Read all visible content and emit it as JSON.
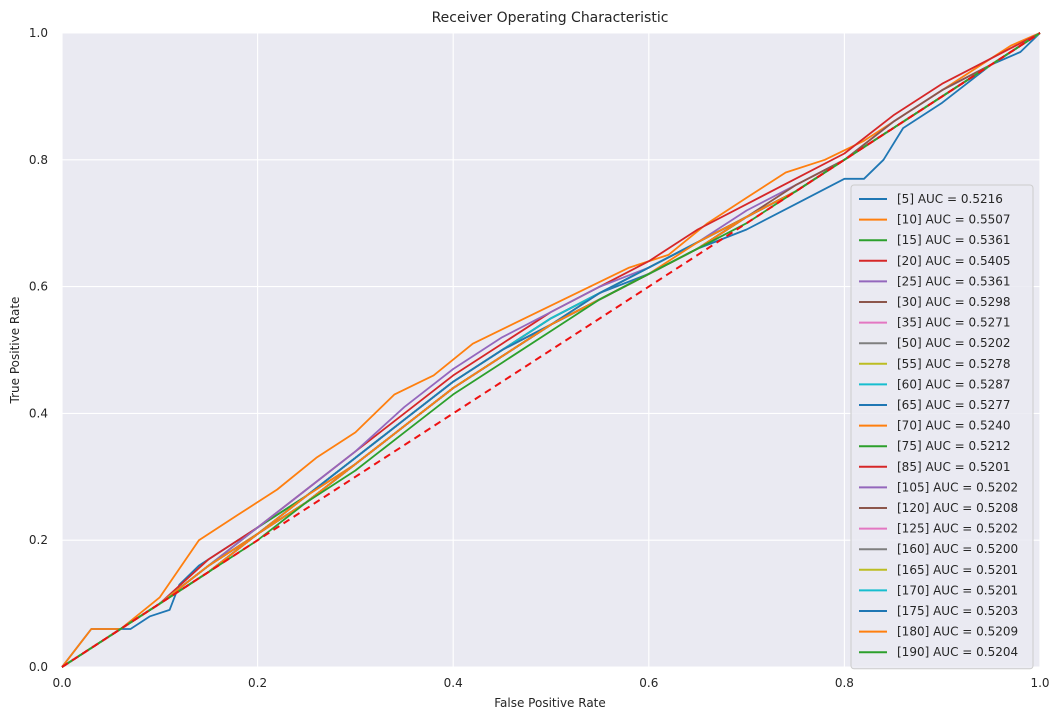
{
  "chart_data": {
    "type": "line",
    "title": "Receiver Operating Characteristic",
    "xlabel": "False Positive Rate",
    "ylabel": "True Positive Rate",
    "xlim": [
      0.0,
      1.0
    ],
    "ylim": [
      0.0,
      1.0
    ],
    "xticks": [
      "0.0",
      "0.2",
      "0.4",
      "0.6",
      "0.8",
      "1.0"
    ],
    "yticks": [
      "0.0",
      "0.2",
      "0.4",
      "0.6",
      "0.8",
      "1.0"
    ],
    "grid": true,
    "legend_position": "center-right",
    "background_color": "#eaeaf2",
    "baseline": {
      "x": [
        0,
        1
      ],
      "y": [
        0,
        1
      ],
      "color": "#ee1111",
      "style": "dashed"
    },
    "series": [
      {
        "name": "[5] AUC = 0.5216",
        "color": "#1f77b4",
        "x": [
          0,
          0.01,
          0.02,
          0.03,
          0.05,
          0.07,
          0.09,
          0.11,
          0.12,
          0.14,
          0.16,
          0.2,
          0.25,
          0.3,
          0.35,
          0.4,
          0.45,
          0.5,
          0.55,
          0.6,
          0.65,
          0.7,
          0.75,
          0.8,
          0.82,
          0.84,
          0.86,
          0.9,
          0.95,
          0.98,
          1
        ],
        "y": [
          0,
          0.02,
          0.04,
          0.06,
          0.06,
          0.06,
          0.08,
          0.09,
          0.13,
          0.16,
          0.18,
          0.22,
          0.27,
          0.33,
          0.39,
          0.45,
          0.5,
          0.55,
          0.59,
          0.62,
          0.66,
          0.69,
          0.73,
          0.77,
          0.77,
          0.8,
          0.85,
          0.89,
          0.95,
          0.97,
          1
        ]
      },
      {
        "name": "[10] AUC = 0.5507",
        "color": "#ff7f0e",
        "x": [
          0,
          0.03,
          0.06,
          0.1,
          0.14,
          0.18,
          0.22,
          0.26,
          0.3,
          0.34,
          0.38,
          0.42,
          0.46,
          0.5,
          0.54,
          0.58,
          0.62,
          0.66,
          0.7,
          0.74,
          0.78,
          0.82,
          0.86,
          0.9,
          0.94,
          0.97,
          1
        ],
        "y": [
          0,
          0.06,
          0.06,
          0.11,
          0.2,
          0.24,
          0.28,
          0.33,
          0.37,
          0.43,
          0.46,
          0.51,
          0.54,
          0.57,
          0.6,
          0.63,
          0.65,
          0.7,
          0.74,
          0.78,
          0.8,
          0.83,
          0.87,
          0.91,
          0.95,
          0.98,
          1
        ]
      },
      {
        "name": "[15] AUC = 0.5361",
        "color": "#2ca02c",
        "x": [
          0,
          0.05,
          0.1,
          0.15,
          0.2,
          0.25,
          0.3,
          0.35,
          0.4,
          0.45,
          0.5,
          0.55,
          0.6,
          0.65,
          0.7,
          0.75,
          0.8,
          0.85,
          0.9,
          0.95,
          1
        ],
        "y": [
          0,
          0.05,
          0.1,
          0.16,
          0.22,
          0.27,
          0.33,
          0.39,
          0.45,
          0.5,
          0.55,
          0.59,
          0.63,
          0.67,
          0.71,
          0.75,
          0.8,
          0.85,
          0.9,
          0.95,
          1
        ]
      },
      {
        "name": "[20] AUC = 0.5405",
        "color": "#d62728",
        "x": [
          0,
          0.05,
          0.1,
          0.15,
          0.2,
          0.25,
          0.3,
          0.35,
          0.4,
          0.45,
          0.5,
          0.55,
          0.6,
          0.65,
          0.7,
          0.75,
          0.8,
          0.85,
          0.9,
          0.95,
          1
        ],
        "y": [
          0,
          0.05,
          0.1,
          0.17,
          0.22,
          0.28,
          0.34,
          0.4,
          0.46,
          0.51,
          0.56,
          0.6,
          0.64,
          0.69,
          0.73,
          0.77,
          0.81,
          0.87,
          0.92,
          0.96,
          1
        ]
      },
      {
        "name": "[25] AUC = 0.5361",
        "color": "#9467bd",
        "x": [
          0,
          0.05,
          0.1,
          0.15,
          0.2,
          0.25,
          0.3,
          0.35,
          0.4,
          0.45,
          0.5,
          0.55,
          0.6,
          0.65,
          0.7,
          0.75,
          0.8,
          0.85,
          0.9,
          0.95,
          1
        ],
        "y": [
          0,
          0.05,
          0.1,
          0.16,
          0.22,
          0.28,
          0.34,
          0.41,
          0.47,
          0.52,
          0.56,
          0.6,
          0.63,
          0.67,
          0.72,
          0.76,
          0.8,
          0.86,
          0.91,
          0.95,
          1
        ]
      },
      {
        "name": "[30] AUC = 0.5298",
        "color": "#8c564b",
        "x": [
          0,
          0.05,
          0.1,
          0.15,
          0.2,
          0.25,
          0.3,
          0.35,
          0.4,
          0.45,
          0.5,
          0.55,
          0.6,
          0.65,
          0.7,
          0.75,
          0.8,
          0.85,
          0.9,
          0.95,
          1
        ],
        "y": [
          0,
          0.05,
          0.1,
          0.16,
          0.21,
          0.27,
          0.33,
          0.39,
          0.45,
          0.5,
          0.55,
          0.59,
          0.63,
          0.67,
          0.71,
          0.76,
          0.8,
          0.86,
          0.91,
          0.95,
          1
        ]
      },
      {
        "name": "[35] AUC = 0.5271",
        "color": "#e377c2",
        "x": [
          0,
          0.05,
          0.1,
          0.15,
          0.2,
          0.25,
          0.3,
          0.35,
          0.4,
          0.45,
          0.5,
          0.55,
          0.6,
          0.65,
          0.7,
          0.75,
          0.8,
          0.85,
          0.9,
          0.95,
          1
        ],
        "y": [
          0,
          0.05,
          0.1,
          0.16,
          0.21,
          0.27,
          0.33,
          0.39,
          0.45,
          0.5,
          0.54,
          0.59,
          0.63,
          0.67,
          0.71,
          0.75,
          0.8,
          0.85,
          0.9,
          0.95,
          1
        ]
      },
      {
        "name": "[50] AUC = 0.5202",
        "color": "#7f7f7f",
        "x": [
          0,
          0.05,
          0.1,
          0.15,
          0.2,
          0.25,
          0.3,
          0.35,
          0.4,
          0.45,
          0.5,
          0.55,
          0.6,
          0.65,
          0.7,
          0.75,
          0.8,
          0.85,
          0.9,
          0.95,
          1
        ],
        "y": [
          0,
          0.05,
          0.1,
          0.16,
          0.21,
          0.27,
          0.32,
          0.38,
          0.44,
          0.49,
          0.54,
          0.58,
          0.62,
          0.66,
          0.71,
          0.75,
          0.8,
          0.85,
          0.9,
          0.95,
          1
        ]
      },
      {
        "name": "[55] AUC = 0.5278",
        "color": "#bcbd22",
        "x": [
          0,
          0.05,
          0.1,
          0.15,
          0.2,
          0.25,
          0.3,
          0.35,
          0.4,
          0.45,
          0.5,
          0.55,
          0.6,
          0.65,
          0.7,
          0.75,
          0.8,
          0.85,
          0.9,
          0.95,
          1
        ],
        "y": [
          0,
          0.05,
          0.1,
          0.16,
          0.21,
          0.27,
          0.33,
          0.39,
          0.45,
          0.5,
          0.54,
          0.59,
          0.63,
          0.67,
          0.71,
          0.75,
          0.8,
          0.85,
          0.9,
          0.95,
          1
        ]
      },
      {
        "name": "[60] AUC = 0.5287",
        "color": "#17becf",
        "x": [
          0,
          0.05,
          0.1,
          0.15,
          0.2,
          0.25,
          0.3,
          0.35,
          0.4,
          0.45,
          0.5,
          0.55,
          0.6,
          0.65,
          0.7,
          0.75,
          0.8,
          0.85,
          0.9,
          0.95,
          1
        ],
        "y": [
          0,
          0.05,
          0.1,
          0.16,
          0.21,
          0.27,
          0.33,
          0.39,
          0.45,
          0.5,
          0.55,
          0.59,
          0.63,
          0.67,
          0.71,
          0.75,
          0.8,
          0.85,
          0.9,
          0.95,
          1
        ]
      },
      {
        "name": "[65] AUC = 0.5277",
        "color": "#1f77b4",
        "x": [
          0,
          0.05,
          0.1,
          0.15,
          0.2,
          0.25,
          0.3,
          0.35,
          0.4,
          0.45,
          0.5,
          0.55,
          0.6,
          0.65,
          0.7,
          0.75,
          0.8,
          0.85,
          0.9,
          0.95,
          1
        ],
        "y": [
          0,
          0.05,
          0.1,
          0.16,
          0.21,
          0.27,
          0.33,
          0.39,
          0.45,
          0.5,
          0.54,
          0.59,
          0.63,
          0.67,
          0.71,
          0.75,
          0.8,
          0.85,
          0.9,
          0.95,
          1
        ]
      },
      {
        "name": "[70] AUC = 0.5240",
        "color": "#ff7f0e",
        "x": [
          0,
          0.05,
          0.1,
          0.15,
          0.2,
          0.25,
          0.3,
          0.35,
          0.4,
          0.45,
          0.5,
          0.55,
          0.6,
          0.65,
          0.7,
          0.75,
          0.8,
          0.85,
          0.9,
          0.95,
          1
        ],
        "y": [
          0,
          0.05,
          0.1,
          0.16,
          0.21,
          0.27,
          0.32,
          0.38,
          0.44,
          0.49,
          0.54,
          0.58,
          0.62,
          0.67,
          0.71,
          0.75,
          0.8,
          0.85,
          0.9,
          0.95,
          1
        ]
      },
      {
        "name": "[75] AUC = 0.5212",
        "color": "#2ca02c",
        "x": [
          0,
          0.05,
          0.1,
          0.15,
          0.2,
          0.25,
          0.3,
          0.35,
          0.4,
          0.45,
          0.5,
          0.55,
          0.6,
          0.65,
          0.7,
          0.75,
          0.8,
          0.85,
          0.9,
          0.95,
          1
        ],
        "y": [
          0,
          0.05,
          0.1,
          0.15,
          0.21,
          0.26,
          0.32,
          0.38,
          0.44,
          0.49,
          0.54,
          0.58,
          0.62,
          0.66,
          0.71,
          0.75,
          0.8,
          0.85,
          0.9,
          0.95,
          1
        ]
      },
      {
        "name": "[85] AUC = 0.5201",
        "color": "#d62728",
        "x": [
          0,
          0.05,
          0.1,
          0.15,
          0.2,
          0.25,
          0.3,
          0.35,
          0.4,
          0.45,
          0.5,
          0.55,
          0.6,
          0.65,
          0.7,
          0.75,
          0.8,
          0.85,
          0.9,
          0.95,
          1
        ],
        "y": [
          0,
          0.05,
          0.1,
          0.15,
          0.21,
          0.26,
          0.32,
          0.38,
          0.44,
          0.49,
          0.54,
          0.58,
          0.62,
          0.66,
          0.71,
          0.75,
          0.8,
          0.85,
          0.9,
          0.95,
          1
        ]
      },
      {
        "name": "[105] AUC = 0.5202",
        "color": "#9467bd",
        "x": [
          0,
          0.05,
          0.1,
          0.15,
          0.2,
          0.25,
          0.3,
          0.35,
          0.4,
          0.45,
          0.5,
          0.55,
          0.6,
          0.65,
          0.7,
          0.75,
          0.8,
          0.85,
          0.9,
          0.95,
          1
        ],
        "y": [
          0,
          0.05,
          0.1,
          0.15,
          0.21,
          0.26,
          0.32,
          0.38,
          0.44,
          0.49,
          0.54,
          0.58,
          0.62,
          0.66,
          0.71,
          0.75,
          0.8,
          0.85,
          0.9,
          0.95,
          1
        ]
      },
      {
        "name": "[120] AUC = 0.5208",
        "color": "#8c564b",
        "x": [
          0,
          0.05,
          0.1,
          0.15,
          0.2,
          0.25,
          0.3,
          0.35,
          0.4,
          0.45,
          0.5,
          0.55,
          0.6,
          0.65,
          0.7,
          0.75,
          0.8,
          0.85,
          0.9,
          0.95,
          1
        ],
        "y": [
          0,
          0.05,
          0.1,
          0.15,
          0.21,
          0.26,
          0.32,
          0.38,
          0.44,
          0.49,
          0.54,
          0.58,
          0.62,
          0.66,
          0.71,
          0.75,
          0.8,
          0.85,
          0.9,
          0.95,
          1
        ]
      },
      {
        "name": "[125] AUC = 0.5202",
        "color": "#e377c2",
        "x": [
          0,
          0.05,
          0.1,
          0.15,
          0.2,
          0.25,
          0.3,
          0.35,
          0.4,
          0.45,
          0.5,
          0.55,
          0.6,
          0.65,
          0.7,
          0.75,
          0.8,
          0.85,
          0.9,
          0.95,
          1
        ],
        "y": [
          0,
          0.05,
          0.1,
          0.15,
          0.21,
          0.26,
          0.32,
          0.38,
          0.44,
          0.49,
          0.54,
          0.58,
          0.62,
          0.66,
          0.71,
          0.75,
          0.8,
          0.85,
          0.9,
          0.95,
          1
        ]
      },
      {
        "name": "[160] AUC = 0.5200",
        "color": "#7f7f7f",
        "x": [
          0,
          0.05,
          0.1,
          0.15,
          0.2,
          0.25,
          0.3,
          0.35,
          0.4,
          0.45,
          0.5,
          0.55,
          0.6,
          0.65,
          0.7,
          0.75,
          0.8,
          0.85,
          0.9,
          0.95,
          1
        ],
        "y": [
          0,
          0.05,
          0.1,
          0.15,
          0.21,
          0.26,
          0.32,
          0.38,
          0.44,
          0.49,
          0.54,
          0.58,
          0.62,
          0.66,
          0.71,
          0.75,
          0.8,
          0.85,
          0.9,
          0.95,
          1
        ]
      },
      {
        "name": "[165] AUC = 0.5201",
        "color": "#bcbd22",
        "x": [
          0,
          0.05,
          0.1,
          0.15,
          0.2,
          0.25,
          0.3,
          0.35,
          0.4,
          0.45,
          0.5,
          0.55,
          0.6,
          0.65,
          0.7,
          0.75,
          0.8,
          0.85,
          0.9,
          0.95,
          1
        ],
        "y": [
          0,
          0.05,
          0.1,
          0.15,
          0.21,
          0.26,
          0.32,
          0.38,
          0.44,
          0.49,
          0.54,
          0.58,
          0.62,
          0.66,
          0.71,
          0.75,
          0.8,
          0.85,
          0.9,
          0.95,
          1
        ]
      },
      {
        "name": "[170] AUC = 0.5201",
        "color": "#17becf",
        "x": [
          0,
          0.05,
          0.1,
          0.15,
          0.2,
          0.25,
          0.3,
          0.35,
          0.4,
          0.45,
          0.5,
          0.55,
          0.6,
          0.65,
          0.7,
          0.75,
          0.8,
          0.85,
          0.9,
          0.95,
          1
        ],
        "y": [
          0,
          0.05,
          0.1,
          0.15,
          0.21,
          0.26,
          0.32,
          0.38,
          0.44,
          0.49,
          0.54,
          0.58,
          0.62,
          0.66,
          0.71,
          0.75,
          0.8,
          0.85,
          0.9,
          0.95,
          1
        ]
      },
      {
        "name": "[175] AUC = 0.5203",
        "color": "#1f77b4",
        "x": [
          0,
          0.05,
          0.1,
          0.15,
          0.2,
          0.25,
          0.3,
          0.35,
          0.4,
          0.45,
          0.5,
          0.55,
          0.6,
          0.65,
          0.7,
          0.75,
          0.8,
          0.85,
          0.9,
          0.95,
          1
        ],
        "y": [
          0,
          0.05,
          0.1,
          0.15,
          0.21,
          0.26,
          0.32,
          0.38,
          0.44,
          0.49,
          0.54,
          0.58,
          0.62,
          0.66,
          0.71,
          0.75,
          0.8,
          0.85,
          0.9,
          0.95,
          1
        ]
      },
      {
        "name": "[180] AUC = 0.5209",
        "color": "#ff7f0e",
        "x": [
          0,
          0.05,
          0.1,
          0.15,
          0.2,
          0.25,
          0.3,
          0.35,
          0.4,
          0.45,
          0.5,
          0.55,
          0.6,
          0.65,
          0.7,
          0.75,
          0.8,
          0.85,
          0.9,
          0.95,
          1
        ],
        "y": [
          0,
          0.05,
          0.1,
          0.15,
          0.21,
          0.26,
          0.32,
          0.38,
          0.44,
          0.49,
          0.54,
          0.58,
          0.62,
          0.66,
          0.71,
          0.75,
          0.8,
          0.85,
          0.9,
          0.95,
          1
        ]
      },
      {
        "name": "[190] AUC = 0.5204",
        "color": "#2ca02c",
        "x": [
          0,
          0.05,
          0.1,
          0.15,
          0.2,
          0.25,
          0.3,
          0.35,
          0.4,
          0.45,
          0.5,
          0.55,
          0.6,
          0.65,
          0.7,
          0.75,
          0.8,
          0.85,
          0.9,
          0.95,
          1
        ],
        "y": [
          0,
          0.05,
          0.1,
          0.15,
          0.2,
          0.26,
          0.31,
          0.37,
          0.43,
          0.48,
          0.53,
          0.58,
          0.62,
          0.66,
          0.7,
          0.75,
          0.8,
          0.85,
          0.9,
          0.95,
          1
        ]
      }
    ]
  }
}
